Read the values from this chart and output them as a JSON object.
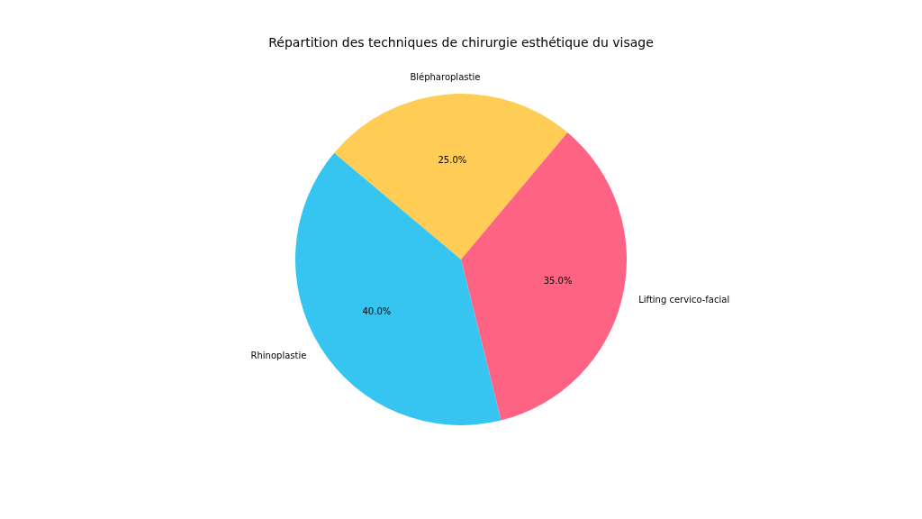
{
  "chart_data": {
    "type": "pie",
    "title": "Répartition des techniques de chirurgie esthétique du visage",
    "categories": [
      "Blépharoplastie",
      "Lifting cervico-facial",
      "Rhinoplastie"
    ],
    "values": [
      25,
      35,
      40
    ],
    "colors": [
      "#ffcd56",
      "#ff6384",
      "#36c5f0"
    ],
    "value_labels": [
      "25.0%",
      "35.0%",
      "40.0%"
    ],
    "legend": false
  }
}
